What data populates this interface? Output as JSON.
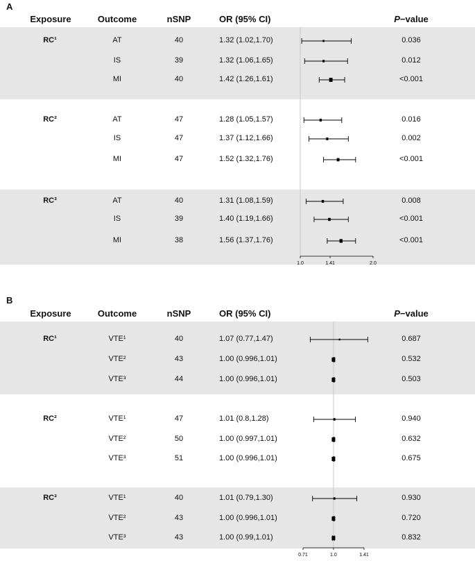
{
  "headers": {
    "exposure": "Exposure",
    "outcome": "Outcome",
    "nsnp": "nSNP",
    "or": "OR (95% CI)",
    "pvalue_italic": "P",
    "pvalue_rest": "−value"
  },
  "chart_data": [
    {
      "type": "forest",
      "panel": "A",
      "reference_line": 1.0,
      "xlim": [
        1.0,
        2.0
      ],
      "xticks": [
        "1.0",
        "1.41",
        "2.0"
      ],
      "groups": [
        {
          "exposure": "RC¹",
          "rows": [
            {
              "outcome": "AT",
              "nsnp": "40",
              "or_text": "1.32 (1.02,1.70)",
              "or": 1.32,
              "lo": 1.02,
              "hi": 1.7,
              "p": "0.036"
            },
            {
              "outcome": "IS",
              "nsnp": "39",
              "or_text": "1.32 (1.06,1.65)",
              "or": 1.32,
              "lo": 1.06,
              "hi": 1.65,
              "p": "0.012"
            },
            {
              "outcome": "MI",
              "nsnp": "40",
              "or_text": "1.42 (1.26,1.61)",
              "or": 1.42,
              "lo": 1.26,
              "hi": 1.61,
              "p": "<0.001"
            }
          ]
        },
        {
          "exposure": "RC²",
          "rows": [
            {
              "outcome": "AT",
              "nsnp": "47",
              "or_text": "1.28 (1.05,1.57)",
              "or": 1.28,
              "lo": 1.05,
              "hi": 1.57,
              "p": "0.016"
            },
            {
              "outcome": "IS",
              "nsnp": "47",
              "or_text": "1.37 (1.12,1.66)",
              "or": 1.37,
              "lo": 1.12,
              "hi": 1.66,
              "p": "0.002"
            },
            {
              "outcome": "MI",
              "nsnp": "47",
              "or_text": "1.52 (1.32,1.76)",
              "or": 1.52,
              "lo": 1.32,
              "hi": 1.76,
              "p": "<0.001"
            }
          ]
        },
        {
          "exposure": "RC³",
          "rows": [
            {
              "outcome": "AT",
              "nsnp": "40",
              "or_text": "1.31 (1.08,1.59)",
              "or": 1.31,
              "lo": 1.08,
              "hi": 1.59,
              "p": "0.008"
            },
            {
              "outcome": "IS",
              "nsnp": "39",
              "or_text": "1.40 (1.19,1.66)",
              "or": 1.4,
              "lo": 1.19,
              "hi": 1.66,
              "p": "<0.001"
            },
            {
              "outcome": "MI",
              "nsnp": "38",
              "or_text": "1.56 (1.37,1.76)",
              "or": 1.56,
              "lo": 1.37,
              "hi": 1.76,
              "p": "<0.001"
            }
          ]
        }
      ]
    },
    {
      "type": "forest",
      "panel": "B",
      "reference_line": 1.0,
      "xlim": [
        0.71,
        1.41
      ],
      "xticks": [
        "0.71",
        "1.0",
        "1.41"
      ],
      "groups": [
        {
          "exposure": "RC¹",
          "rows": [
            {
              "outcome": "VTE¹",
              "nsnp": "40",
              "or_text": "1.07 (0.77,1.47)",
              "or": 1.07,
              "lo": 0.77,
              "hi": 1.47,
              "p": "0.687"
            },
            {
              "outcome": "VTE²",
              "nsnp": "43",
              "or_text": "1.00 (0.996,1.01)",
              "or": 1.0,
              "lo": 0.996,
              "hi": 1.01,
              "p": "0.532"
            },
            {
              "outcome": "VTE³",
              "nsnp": "44",
              "or_text": "1.00 (0.996,1.01)",
              "or": 1.0,
              "lo": 0.996,
              "hi": 1.01,
              "p": "0.503"
            }
          ]
        },
        {
          "exposure": "RC²",
          "rows": [
            {
              "outcome": "VTE¹",
              "nsnp": "47",
              "or_text": "1.01 (0.8,1.28)",
              "or": 1.01,
              "lo": 0.8,
              "hi": 1.28,
              "p": "0.940"
            },
            {
              "outcome": "VTE²",
              "nsnp": "50",
              "or_text": "1.00 (0.997,1.01)",
              "or": 1.0,
              "lo": 0.997,
              "hi": 1.01,
              "p": "0.632"
            },
            {
              "outcome": "VTE³",
              "nsnp": "51",
              "or_text": "1.00 (0.996,1.01)",
              "or": 1.0,
              "lo": 0.996,
              "hi": 1.01,
              "p": "0.675"
            }
          ]
        },
        {
          "exposure": "RC³",
          "rows": [
            {
              "outcome": "VTE¹",
              "nsnp": "40",
              "or_text": "1.01 (0.79,1.30)",
              "or": 1.01,
              "lo": 0.79,
              "hi": 1.3,
              "p": "0.930"
            },
            {
              "outcome": "VTE²",
              "nsnp": "43",
              "or_text": "1.00 (0.996,1.01)",
              "or": 1.0,
              "lo": 0.996,
              "hi": 1.01,
              "p": "0.720"
            },
            {
              "outcome": "VTE³",
              "nsnp": "43",
              "or_text": "1.00 (0.99,1.01)",
              "or": 1.0,
              "lo": 0.99,
              "hi": 1.01,
              "p": "0.832"
            }
          ]
        }
      ]
    }
  ],
  "colors": {
    "band": "#e6e6e6",
    "reference_line": "#c8c8c8",
    "marker": "#000000"
  }
}
